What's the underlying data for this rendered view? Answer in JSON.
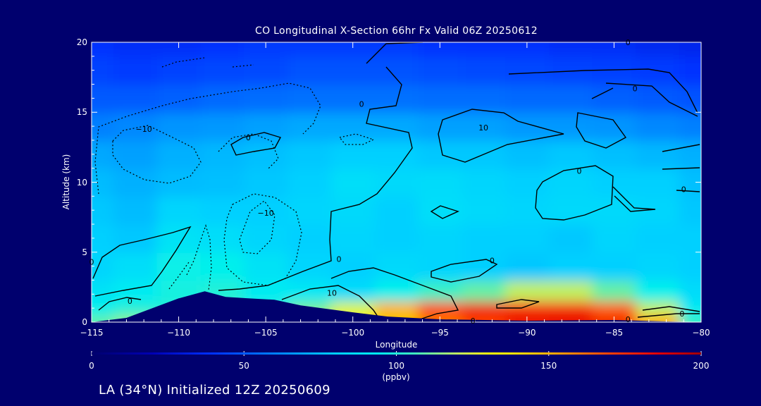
{
  "chart_data": {
    "type": "heatmap",
    "title": "CO Longitudinal X-Section 66hr  Fx Valid 06Z 20250612",
    "xlabel": "Longitude",
    "ylabel": "Altitude (km)",
    "xlim": [
      -115,
      -80
    ],
    "ylim": [
      0,
      20
    ],
    "x_ticks": [
      -115,
      -110,
      -105,
      -100,
      -95,
      -90,
      -85,
      -80
    ],
    "x_tick_labels": [
      "−115",
      "−110",
      "−105",
      "−100",
      "−95",
      "−90",
      "−85",
      "−80"
    ],
    "y_ticks": [
      0,
      5,
      10,
      15,
      20
    ],
    "y_tick_labels": [
      "0",
      "5",
      "10",
      "15",
      "20"
    ],
    "longitude": [
      -115,
      -112.5,
      -110,
      -107.5,
      -105,
      -102.5,
      -100,
      -97.5,
      -95,
      -92.5,
      -90,
      -87.5,
      -85,
      -82.5,
      -80
    ],
    "altitude_km": [
      0,
      1,
      2,
      4,
      6,
      8,
      10,
      12,
      14,
      16,
      18,
      20
    ],
    "co_ppbv": [
      [
        110,
        115,
        0,
        0,
        105,
        118,
        135,
        145,
        160,
        170,
        180,
        182,
        175,
        150,
        105
      ],
      [
        95,
        100,
        100,
        104,
        100,
        112,
        125,
        150,
        170,
        178,
        175,
        175,
        165,
        120,
        92
      ],
      [
        88,
        92,
        98,
        100,
        92,
        90,
        85,
        95,
        105,
        110,
        120,
        120,
        110,
        95,
        85
      ],
      [
        82,
        86,
        96,
        95,
        88,
        82,
        80,
        84,
        82,
        80,
        78,
        80,
        80,
        82,
        80
      ],
      [
        80,
        78,
        88,
        86,
        82,
        80,
        82,
        80,
        82,
        80,
        80,
        78,
        82,
        80,
        80
      ],
      [
        78,
        75,
        82,
        80,
        80,
        82,
        84,
        80,
        86,
        84,
        82,
        84,
        84,
        82,
        78
      ],
      [
        75,
        72,
        75,
        76,
        78,
        80,
        86,
        84,
        85,
        82,
        80,
        82,
        80,
        80,
        76
      ],
      [
        70,
        68,
        72,
        74,
        76,
        78,
        80,
        80,
        78,
        78,
        76,
        78,
        76,
        74,
        72
      ],
      [
        60,
        62,
        65,
        66,
        68,
        70,
        70,
        70,
        68,
        68,
        66,
        66,
        65,
        62,
        60
      ],
      [
        50,
        50,
        52,
        54,
        55,
        56,
        56,
        56,
        55,
        55,
        54,
        54,
        52,
        50,
        48
      ],
      [
        44,
        42,
        44,
        45,
        46,
        48,
        48,
        48,
        47,
        46,
        45,
        44,
        43,
        42,
        40
      ],
      [
        40,
        38,
        38,
        40,
        42,
        42,
        42,
        42,
        40,
        40,
        40,
        38,
        38,
        36,
        35
      ]
    ],
    "contour_labels": [
      {
        "text": "−10",
        "lon": -112,
        "alt": 13.8
      },
      {
        "text": "−10",
        "lon": -105,
        "alt": 7.8
      },
      {
        "text": "0",
        "lon": -106,
        "alt": 13.2
      },
      {
        "text": "0",
        "lon": -99.5,
        "alt": 15.6
      },
      {
        "text": "0",
        "lon": -115,
        "alt": 4.3
      },
      {
        "text": "0",
        "lon": -112.8,
        "alt": 1.5
      },
      {
        "text": "0",
        "lon": -100.8,
        "alt": 4.5
      },
      {
        "text": "10",
        "lon": -101.2,
        "alt": 2.1
      },
      {
        "text": "10",
        "lon": -92.5,
        "alt": 13.9
      },
      {
        "text": "0",
        "lon": -87,
        "alt": 10.8
      },
      {
        "text": "0",
        "lon": -83.8,
        "alt": 16.7
      },
      {
        "text": "0",
        "lon": -81,
        "alt": 9.5
      },
      {
        "text": "0",
        "lon": -92,
        "alt": 4.4
      },
      {
        "text": "0",
        "lon": -81.1,
        "alt": 0.6
      },
      {
        "text": "0",
        "lon": -84.2,
        "alt": 0.2
      },
      {
        "text": "0",
        "lon": -93.1,
        "alt": 0.1
      },
      {
        "text": "0",
        "lon": -84.2,
        "alt": 20
      }
    ],
    "terrain_profile": [
      {
        "lon": -115,
        "alt": 0
      },
      {
        "lon": -113,
        "alt": 0.3
      },
      {
        "lon": -110,
        "alt": 1.7
      },
      {
        "lon": -108.5,
        "alt": 2.2
      },
      {
        "lon": -107.3,
        "alt": 1.8
      },
      {
        "lon": -106,
        "alt": 1.7
      },
      {
        "lon": -104.5,
        "alt": 1.6
      },
      {
        "lon": -103,
        "alt": 1.2
      },
      {
        "lon": -100,
        "alt": 0.7
      },
      {
        "lon": -98,
        "alt": 0.4
      },
      {
        "lon": -95,
        "alt": 0.2
      },
      {
        "lon": -90,
        "alt": 0.1
      },
      {
        "lon": -85,
        "alt": 0.15
      },
      {
        "lon": -82,
        "alt": 0.05
      },
      {
        "lon": -80,
        "alt": 0
      }
    ],
    "colorbar": {
      "min": 0,
      "max": 200,
      "ticks": [
        0,
        50,
        100,
        150,
        200
      ],
      "tick_labels": [
        "0",
        "50",
        "100",
        "150",
        "200"
      ],
      "units": "(ppbv)"
    }
  },
  "footer": "LA (34°N) Initialized 12Z 20250609",
  "colors": {
    "background": "#00006e",
    "terrain": "#00006e",
    "contour": "#000000",
    "text": "#ffffff"
  }
}
